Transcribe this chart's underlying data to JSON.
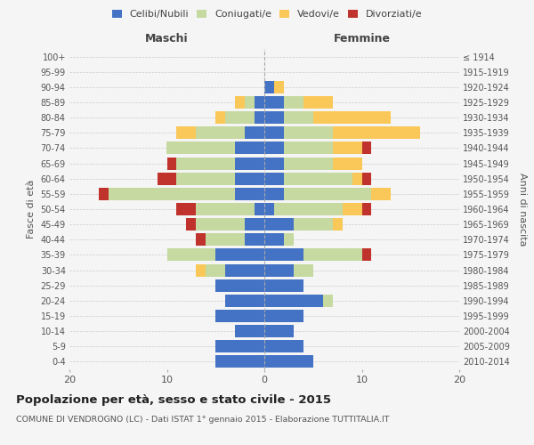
{
  "age_groups": [
    "0-4",
    "5-9",
    "10-14",
    "15-19",
    "20-24",
    "25-29",
    "30-34",
    "35-39",
    "40-44",
    "45-49",
    "50-54",
    "55-59",
    "60-64",
    "65-69",
    "70-74",
    "75-79",
    "80-84",
    "85-89",
    "90-94",
    "95-99",
    "100+"
  ],
  "birth_years": [
    "2010-2014",
    "2005-2009",
    "2000-2004",
    "1995-1999",
    "1990-1994",
    "1985-1989",
    "1980-1984",
    "1975-1979",
    "1970-1974",
    "1965-1969",
    "1960-1964",
    "1955-1959",
    "1950-1954",
    "1945-1949",
    "1940-1944",
    "1935-1939",
    "1930-1934",
    "1925-1929",
    "1920-1924",
    "1915-1919",
    "≤ 1914"
  ],
  "maschi": {
    "celibi": [
      5,
      5,
      3,
      5,
      4,
      5,
      4,
      5,
      2,
      2,
      1,
      3,
      3,
      3,
      3,
      2,
      1,
      1,
      0,
      0,
      0
    ],
    "coniugati": [
      0,
      0,
      0,
      0,
      0,
      0,
      2,
      5,
      4,
      5,
      6,
      13,
      6,
      6,
      7,
      5,
      3,
      1,
      0,
      0,
      0
    ],
    "vedovi": [
      0,
      0,
      0,
      0,
      0,
      0,
      1,
      0,
      0,
      0,
      0,
      0,
      0,
      0,
      0,
      2,
      1,
      1,
      0,
      0,
      0
    ],
    "divorziati": [
      0,
      0,
      0,
      0,
      0,
      0,
      0,
      0,
      1,
      1,
      2,
      1,
      2,
      1,
      0,
      0,
      0,
      0,
      0,
      0,
      0
    ]
  },
  "femmine": {
    "nubili": [
      5,
      4,
      3,
      4,
      6,
      4,
      3,
      4,
      2,
      3,
      1,
      2,
      2,
      2,
      2,
      2,
      2,
      2,
      1,
      0,
      0
    ],
    "coniugate": [
      0,
      0,
      0,
      0,
      1,
      0,
      2,
      6,
      1,
      4,
      7,
      9,
      7,
      5,
      5,
      5,
      3,
      2,
      0,
      0,
      0
    ],
    "vedove": [
      0,
      0,
      0,
      0,
      0,
      0,
      0,
      0,
      0,
      1,
      2,
      2,
      1,
      3,
      3,
      9,
      8,
      3,
      1,
      0,
      0
    ],
    "divorziate": [
      0,
      0,
      0,
      0,
      0,
      0,
      0,
      1,
      0,
      0,
      1,
      0,
      1,
      0,
      1,
      0,
      0,
      0,
      0,
      0,
      0
    ]
  },
  "colors": {
    "celibi_nubili": "#4472C4",
    "coniugati": "#C5D9A0",
    "vedovi": "#FAC858",
    "divorziati": "#C0332D"
  },
  "xlim": 20,
  "title": "Popolazione per età, sesso e stato civile - 2015",
  "subtitle": "COMUNE DI VENDROGNO (LC) - Dati ISTAT 1° gennaio 2015 - Elaborazione TUTTITALIA.IT",
  "ylabel_left": "Fasce di età",
  "ylabel_right": "Anni di nascita",
  "xlabel_left": "Maschi",
  "xlabel_right": "Femmine",
  "background_color": "#f5f5f5",
  "grid_color": "#cccccc"
}
